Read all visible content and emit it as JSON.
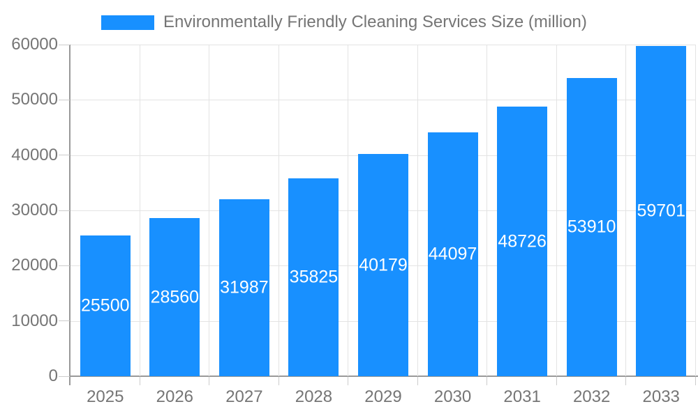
{
  "legend": {
    "label": "Environmentally Friendly Cleaning Services Size (million)",
    "swatch_color": "#1890ff"
  },
  "chart_data": {
    "type": "bar",
    "title": "Environmentally Friendly Cleaning Services Size (million)",
    "categories": [
      "2025",
      "2026",
      "2027",
      "2028",
      "2029",
      "2030",
      "2031",
      "2032",
      "2033"
    ],
    "values": [
      25500,
      28560,
      31987,
      35825,
      40179,
      44097,
      48726,
      53910,
      59701
    ],
    "xlabel": "",
    "ylabel": "",
    "ylim": [
      0,
      60000
    ],
    "yticks": [
      0,
      10000,
      20000,
      30000,
      40000,
      50000,
      60000
    ],
    "grid": true,
    "legend_position": "top",
    "bar_color": "#1890ff",
    "bar_label_color": "#ffffff",
    "axis_label_color": "#757575",
    "grid_color": "#e3e3e3",
    "tick_color": "#cccccc",
    "axis_line_color": "#999999",
    "background_color": "#ffffff"
  }
}
